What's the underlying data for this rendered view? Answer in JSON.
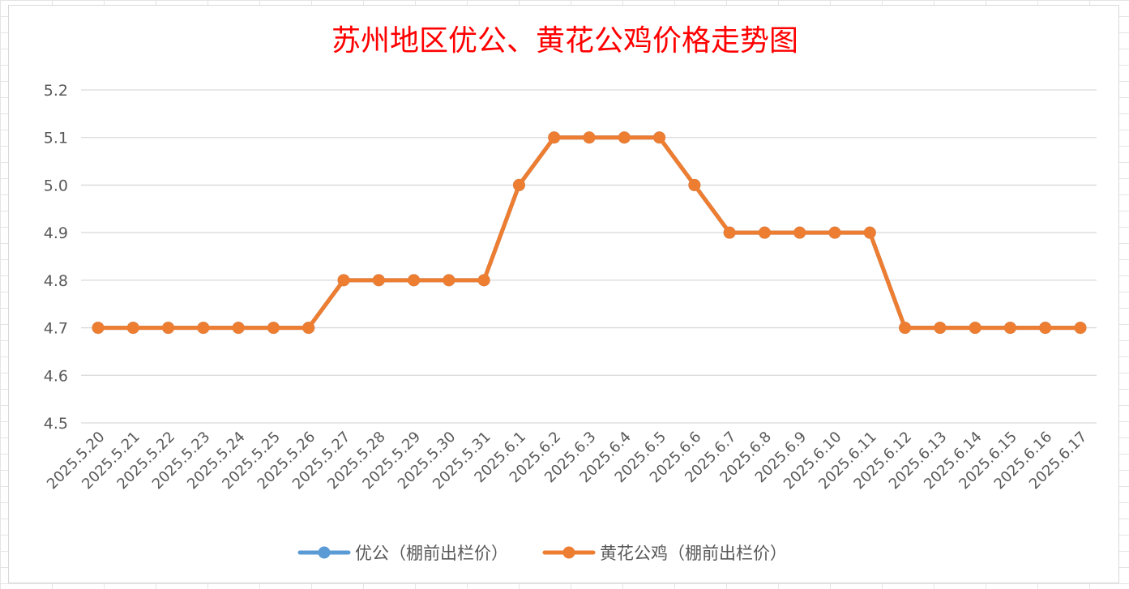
{
  "chart_data": {
    "type": "line",
    "title": "苏州地区优公、黄花公鸡价格走势图",
    "xlabel": "",
    "ylabel": "",
    "ylim": [
      4.5,
      5.2
    ],
    "yticks": [
      "4.5",
      "4.6",
      "4.7",
      "4.8",
      "4.9",
      "5.0",
      "5.1",
      "5.2"
    ],
    "grid": true,
    "legend_position": "bottom",
    "categories": [
      "2025.5.20",
      "2025.5.21",
      "2025.5.22",
      "2025.5.23",
      "2025.5.24",
      "2025.5.25",
      "2025.5.26",
      "2025.5.27",
      "2025.5.28",
      "2025.5.29",
      "2025.5.30",
      "2025.5.31",
      "2025.6.1",
      "2025.6.2",
      "2025.6.3",
      "2025.6.4",
      "2025.6.5",
      "2025.6.6",
      "2025.6.7",
      "2025.6.8",
      "2025.6.9",
      "2025.6.10",
      "2025.6.11",
      "2025.6.12",
      "2025.6.13",
      "2025.6.14",
      "2025.6.15",
      "2025.6.16",
      "2025.6.17"
    ],
    "series": [
      {
        "name": "优公（棚前出栏价）",
        "color": "#5b9bd5",
        "values": [
          4.7,
          4.7,
          4.7,
          4.7,
          4.7,
          4.7,
          4.7,
          4.8,
          4.8,
          4.8,
          4.8,
          4.8,
          5.0,
          5.1,
          5.1,
          5.1,
          5.1,
          5.0,
          4.9,
          4.9,
          4.9,
          4.9,
          4.9,
          4.7,
          4.7,
          4.7,
          4.7,
          4.7,
          4.7
        ]
      },
      {
        "name": "黄花公鸡（棚前出栏价）",
        "color": "#ed7d31",
        "values": [
          4.7,
          4.7,
          4.7,
          4.7,
          4.7,
          4.7,
          4.7,
          4.8,
          4.8,
          4.8,
          4.8,
          4.8,
          5.0,
          5.1,
          5.1,
          5.1,
          5.1,
          5.0,
          4.9,
          4.9,
          4.9,
          4.9,
          4.9,
          4.7,
          4.7,
          4.7,
          4.7,
          4.7,
          4.7
        ]
      }
    ]
  }
}
